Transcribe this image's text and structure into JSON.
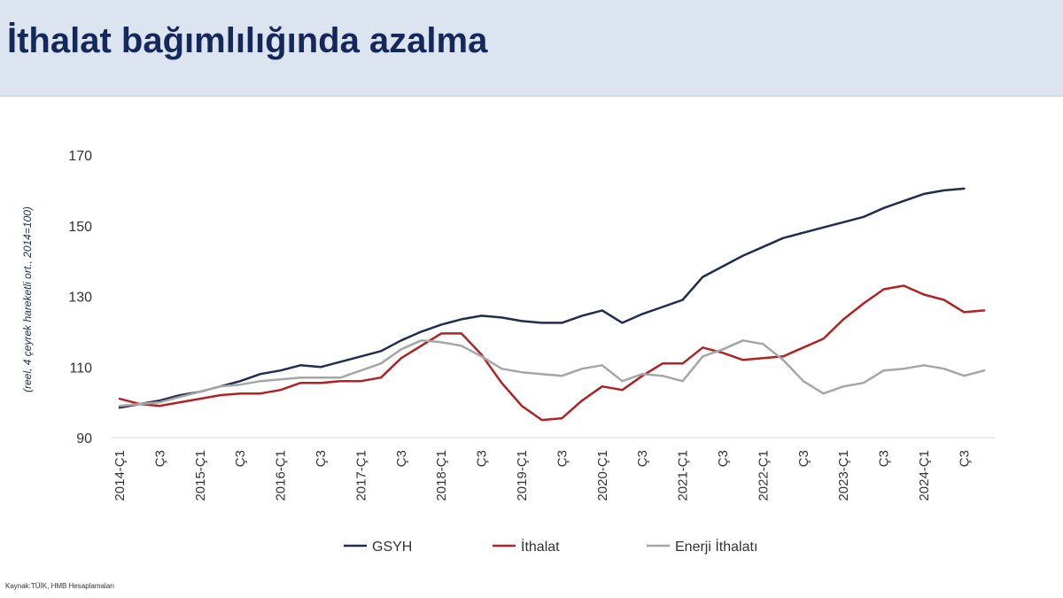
{
  "header": {
    "title": "İthalat bağımlılığında azalma"
  },
  "footer": {
    "source": "Kaynak:TÜİK, HMB Hesaplamaları"
  },
  "colors": {
    "gsyh": "#1f2d4f",
    "ithalat": "#b22222",
    "enerji": "#a6a6a6",
    "title": "#14285a",
    "band": "#dce4f0"
  },
  "chart_data": {
    "type": "line",
    "ylabel": "(reel, 4 çeyrek hareketli ort., 2014=100)",
    "xlabel": "",
    "ylim": [
      90,
      170
    ],
    "yticks": [
      90,
      110,
      130,
      150,
      170
    ],
    "grid": false,
    "legend_position": "bottom",
    "categories": [
      "2014-Ç1",
      "",
      "Ç3",
      "",
      "2015-Ç1",
      "",
      "Ç3",
      "",
      "2016-Ç1",
      "",
      "Ç3",
      "",
      "2017-Ç1",
      "",
      "Ç3",
      "",
      "2018-Ç1",
      "",
      "Ç3",
      "",
      "2019-Ç1",
      "",
      "Ç3",
      "",
      "2020-Ç1",
      "",
      "Ç3",
      "",
      "2021-Ç1",
      "",
      "Ç3",
      "",
      "2022-Ç1",
      "",
      "Ç3",
      "",
      "2023-Ç1",
      "",
      "Ç3",
      "",
      "2024-Ç1",
      "",
      "Ç3",
      ""
    ],
    "series": [
      {
        "name": "GSYH",
        "color": "#1f2d4f",
        "values": [
          98.5,
          99.5,
          100.5,
          102,
          103,
          104.5,
          106,
          108,
          109,
          110.5,
          110,
          111.5,
          113,
          114.5,
          117.5,
          120,
          122,
          123.5,
          124.5,
          124,
          123,
          122.5,
          122.5,
          124.5,
          126,
          122.5,
          125,
          127,
          129,
          135.5,
          138.5,
          141.5,
          144,
          146.5,
          148,
          149.5,
          151,
          152.5,
          155,
          157,
          159,
          160,
          160.5,
          null
        ]
      },
      {
        "name": "İthalat",
        "color": "#b22222",
        "values": [
          101,
          99.5,
          99,
          100,
          101,
          102,
          102.5,
          102.5,
          103.5,
          105.5,
          105.5,
          106,
          106,
          107,
          112.5,
          116,
          119.5,
          119.5,
          113.5,
          105.5,
          99,
          95,
          95.5,
          100.5,
          104.5,
          103.5,
          107.5,
          111,
          111,
          115.5,
          114,
          112,
          112.5,
          113,
          115.5,
          118,
          123.5,
          128,
          132,
          133,
          130.5,
          129,
          125.5,
          126
        ]
      },
      {
        "name": "Enerji İthalatı",
        "color": "#a6a6a6",
        "values": [
          99,
          99.5,
          100,
          101.5,
          103,
          104.5,
          105,
          106,
          106.5,
          107,
          107,
          107,
          109,
          111,
          115,
          117.5,
          117,
          116,
          113,
          109.5,
          108.5,
          108,
          107.5,
          109.5,
          110.5,
          106,
          108,
          107.5,
          106,
          113,
          115,
          117.5,
          116.5,
          112,
          106,
          102.5,
          104.5,
          105.5,
          109,
          109.5,
          110.5,
          109.5,
          107.5,
          109
        ]
      }
    ]
  }
}
